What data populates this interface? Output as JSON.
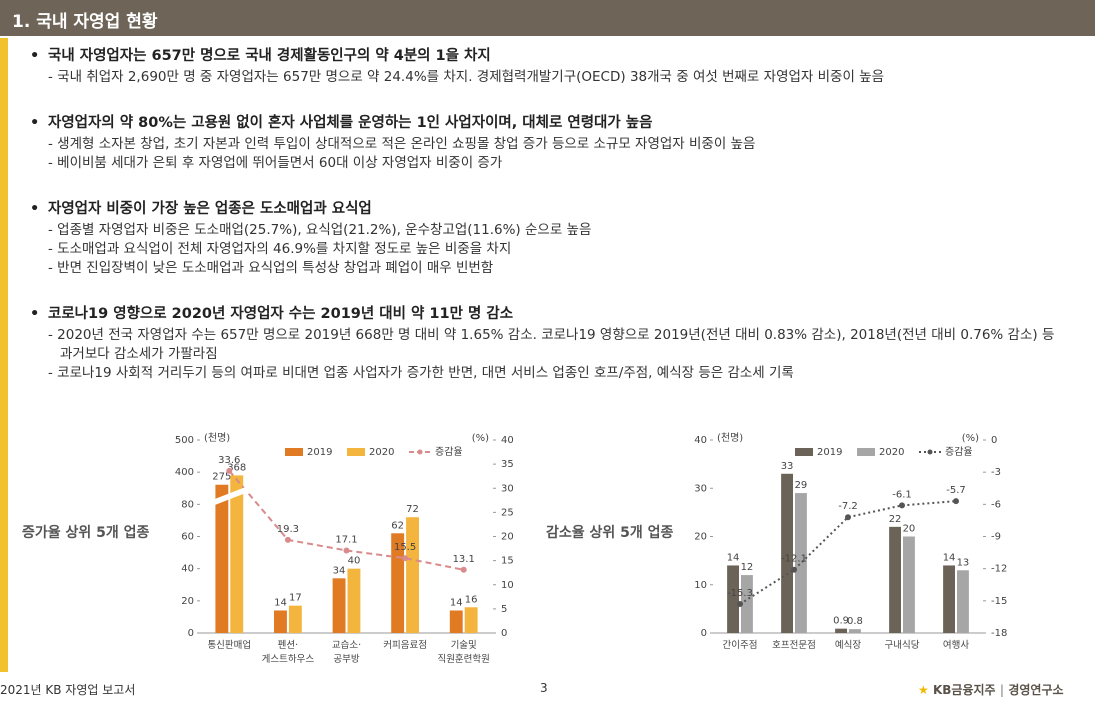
{
  "header": {
    "title": "1. 국내 자영업 현황"
  },
  "bullets": [
    {
      "text": "국내 자영업자는 657만 명으로 국내 경제활동인구의 약 4분의 1을 차지",
      "subs": [
        "- 국내 취업자 2,690만 명 중 자영업자는 657만 명으로 약 24.4%를 차지. 경제협력개발기구(OECD) 38개국 중 여섯 번째로 자영업자 비중이 높음"
      ]
    },
    {
      "text": "자영업자의 약 80%는 고용원 없이 혼자 사업체를 운영하는 1인 사업자이며, 대체로 연령대가 높음",
      "subs": [
        "- 생계형 소자본 창업, 초기 자본과 인력 투입이 상대적으로 적은 온라인 쇼핑몰 창업 증가 등으로 소규모 자영업자 비중이 높음",
        "- 베이비붐 세대가 은퇴 후 자영업에 뛰어들면서 60대 이상 자영업자 비중이 증가"
      ]
    },
    {
      "text": "자영업자 비중이 가장 높은 업종은 도소매업과 요식업",
      "subs": [
        "- 업종별 자영업자 비중은 도소매업(25.7%), 요식업(21.2%), 운수창고업(11.6%) 순으로 높음",
        "- 도소매업과 요식업이 전체 자영업자의 46.9%를 차지할 정도로 높은 비중을 차지",
        "- 반면 진입장벽이 낮은 도소매업과 요식업의 특성상 창업과 폐업이 매우 빈번함"
      ]
    },
    {
      "text": "코로나19 영향으로 2020년 자영업자 수는 2019년 대비 약 11만 명 감소",
      "subs": [
        "- 2020년 전국 자영업자 수는 657만 명으로 2019년 668만 명 대비 약 1.65% 감소. 코로나19 영향으로 2019년(전년 대비 0.83% 감소), 2018년(전년 대비 0.76% 감소) 등 과거보다 감소세가 가팔라짐",
        "- 코로나19 사회적 거리두기 등의 여파로 비대면 업종 사업자가 증가한 반면, 대면 서비스 업종인 호프/주점, 예식장 등은 감소세 기록"
      ]
    }
  ],
  "chart_data": [
    {
      "type": "bar",
      "annotation": "증가율 상위 5개 업종",
      "y_unit": "(천명)",
      "y2_unit": "(%)",
      "categories": [
        "통신판매업",
        "펜션·\n게스트하우스",
        "교습소·\n공부방",
        "커피음료점",
        "기술및\n직원훈련학원"
      ],
      "series": [
        {
          "name": "2019",
          "color": "#e07b24",
          "values": [
            275,
            14,
            34,
            62,
            14
          ]
        },
        {
          "name": "2020",
          "color": "#f3b53d",
          "values": [
            368,
            17,
            40,
            72,
            16
          ]
        },
        {
          "name": "증감율",
          "color": "#d98a8c",
          "type": "line",
          "line_style": "dashed",
          "axis": "y2",
          "values": [
            33.6,
            19.3,
            17.1,
            15.5,
            13.1
          ]
        }
      ],
      "ylim": [
        0,
        500
      ],
      "yticks": [
        0,
        20,
        40,
        60,
        80,
        400,
        500
      ],
      "axis_break": true,
      "y2lim": [
        0,
        40
      ],
      "y2ticks": [
        0,
        5,
        10,
        15,
        20,
        25,
        30,
        35,
        40
      ]
    },
    {
      "type": "bar",
      "annotation": "감소율 상위 5개 업종",
      "y_unit": "(천명)",
      "y2_unit": "(%)",
      "categories": [
        "간이주점",
        "호프전문점",
        "예식장",
        "구내식당",
        "여행사"
      ],
      "series": [
        {
          "name": "2019",
          "color": "#6b6358",
          "values": [
            14,
            33,
            0.9,
            22,
            14
          ]
        },
        {
          "name": "2020",
          "color": "#a6a6a6",
          "values": [
            12,
            29,
            0.8,
            20,
            13
          ]
        },
        {
          "name": "증감율",
          "color": "#555555",
          "type": "line",
          "line_style": "dotted",
          "axis": "y2",
          "values": [
            -15.3,
            -12.1,
            -7.2,
            -6.1,
            -5.7
          ]
        }
      ],
      "ylim": [
        0,
        40
      ],
      "yticks": [
        0,
        10,
        20,
        30,
        40
      ],
      "axis_break": false,
      "y2lim": [
        -18,
        0
      ],
      "y2ticks": [
        -18,
        -15,
        -12,
        -9,
        -6,
        -3,
        0
      ]
    }
  ],
  "footer": {
    "left": "2021년 KB 자영업 보고서",
    "page": "3",
    "brand": "KB금융지주",
    "org": "경영연구소"
  }
}
